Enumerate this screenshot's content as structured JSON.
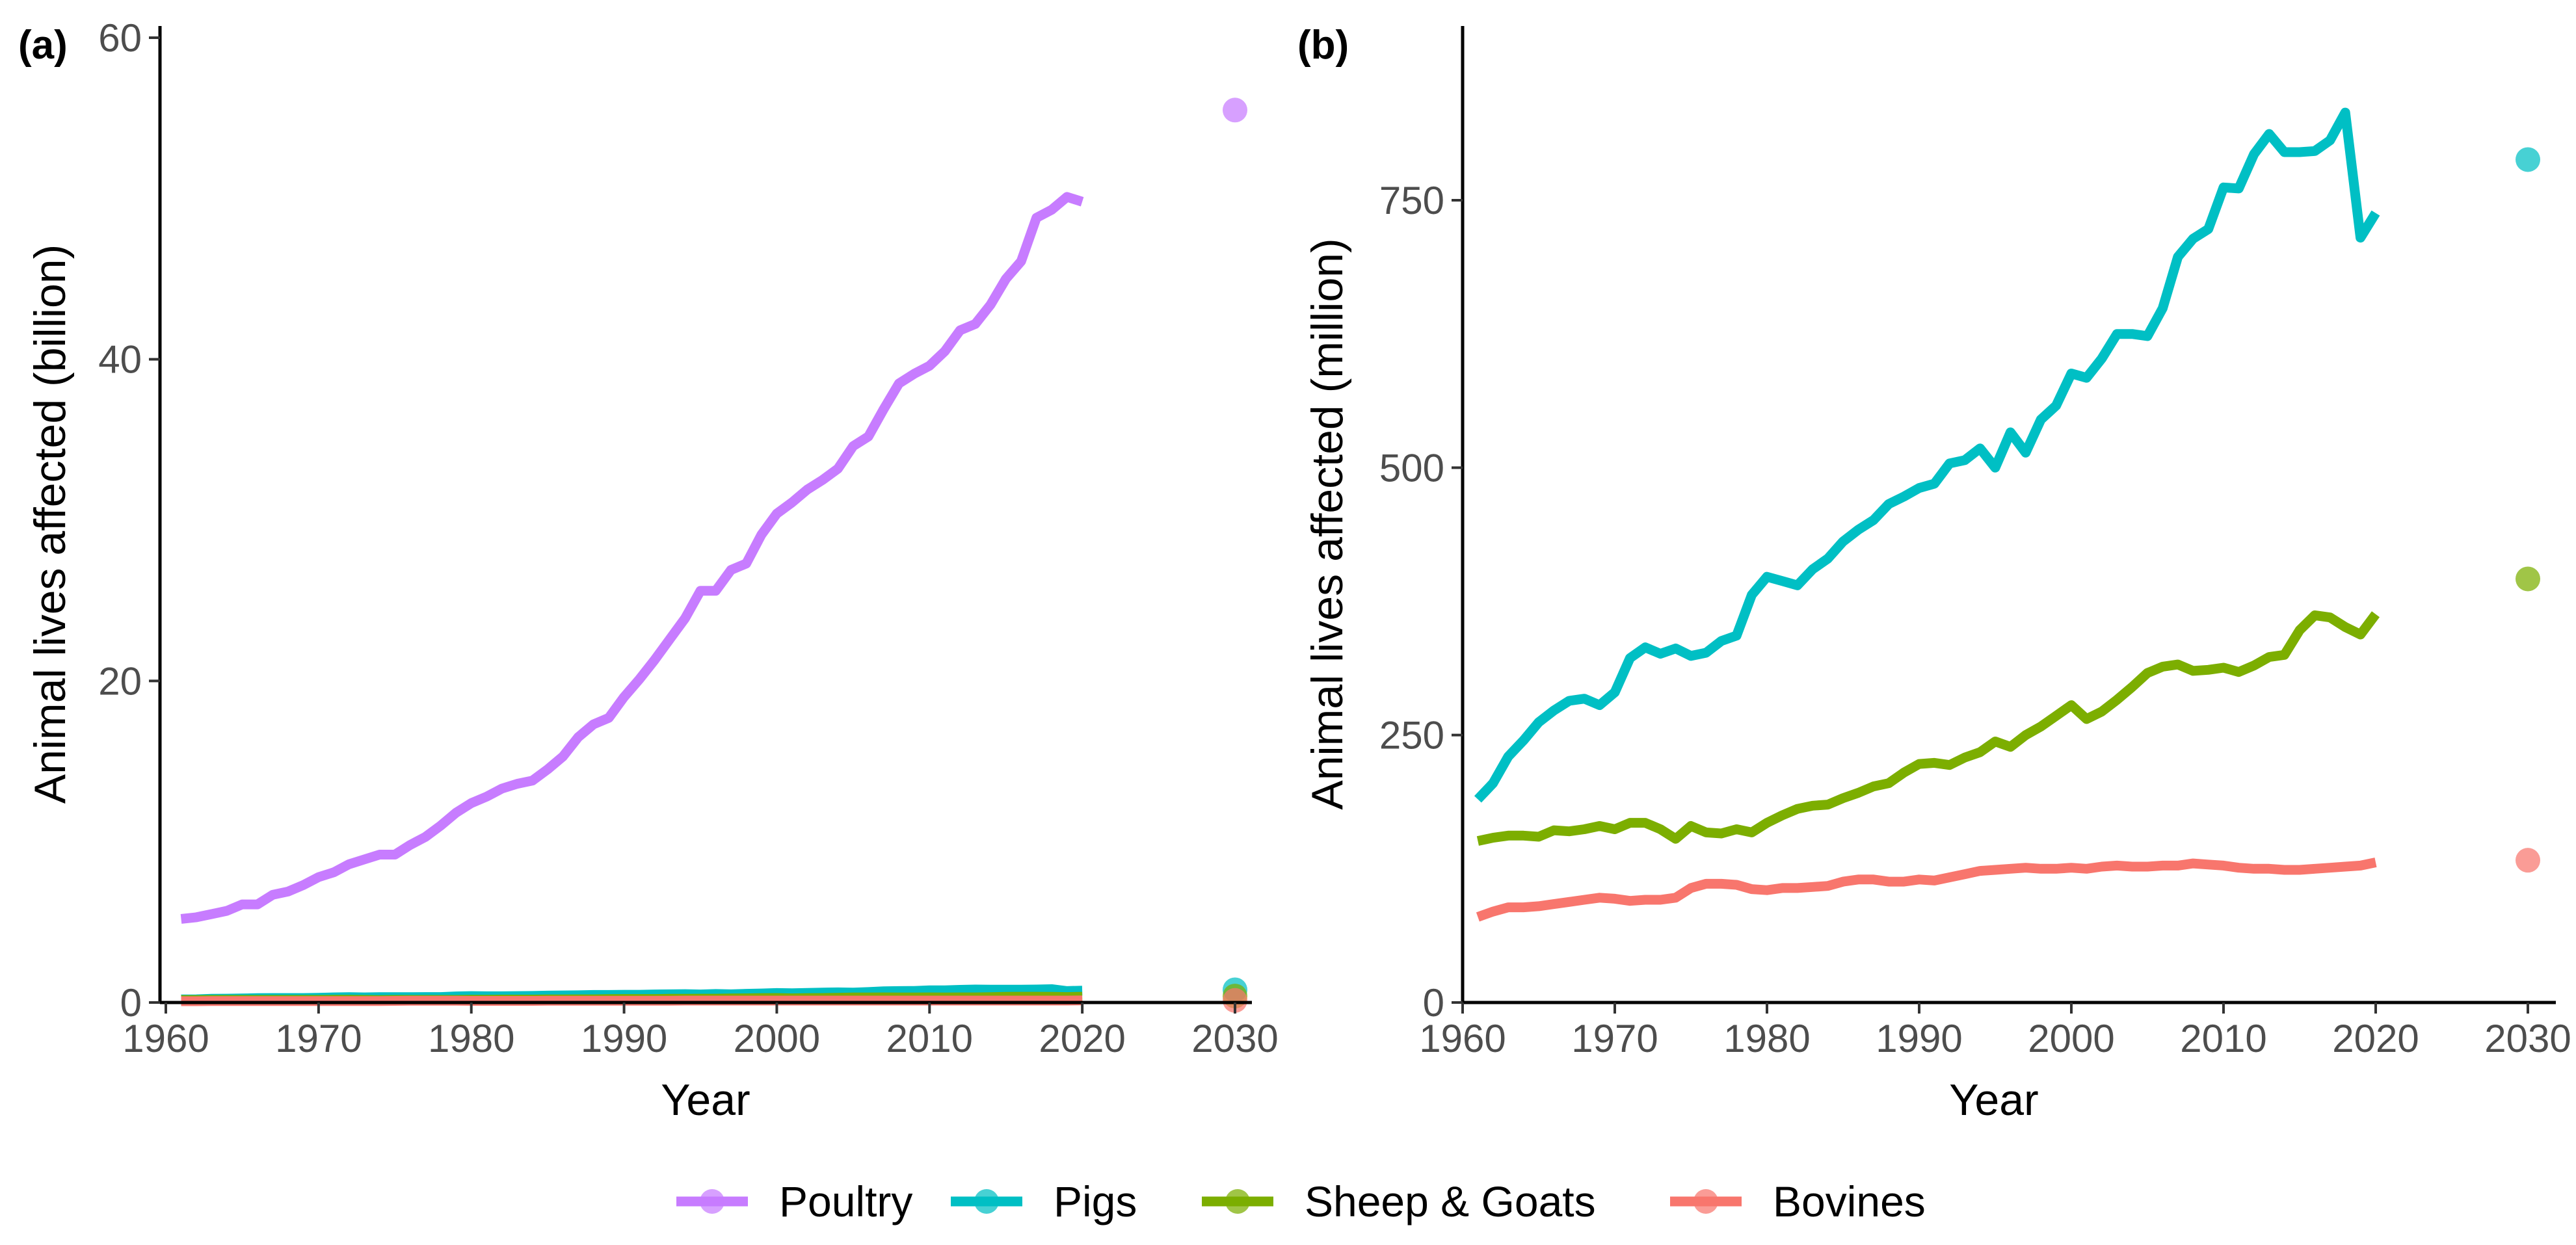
{
  "colors": {
    "Poultry": "#C77CFF",
    "Pigs": "#00BFC4",
    "Sheep & Goats": "#7CAE00",
    "Bovines": "#F8766D"
  },
  "panels": [
    {
      "tag": "(a)",
      "xlabel": "Year",
      "ylabel": "Animal lives affected (billion)",
      "x_ticks": [
        "1960",
        "1970",
        "1980",
        "1990",
        "2000",
        "2010",
        "2020",
        "2030"
      ],
      "y_ticks": [
        "0",
        "20",
        "40",
        "60"
      ]
    },
    {
      "tag": "(b)",
      "xlabel": "Year",
      "ylabel": "Animal lives affected (million)",
      "x_ticks": [
        "1960",
        "1970",
        "1980",
        "1990",
        "2000",
        "2010",
        "2020",
        "2030"
      ],
      "y_ticks": [
        "0",
        "250",
        "500",
        "750"
      ]
    }
  ],
  "legend": {
    "position": "bottom",
    "items": [
      "Poultry",
      "Pigs",
      "Sheep & Goats",
      "Bovines"
    ]
  },
  "chart_data": [
    {
      "type": "line",
      "panel": "(a)",
      "xlabel": "Year",
      "ylabel": "Animal lives affected (billion)",
      "xlim": [
        1960,
        2030
      ],
      "ylim": [
        0,
        60
      ],
      "grid": false,
      "x": [
        1961,
        1962,
        1963,
        1964,
        1965,
        1966,
        1967,
        1968,
        1969,
        1970,
        1971,
        1972,
        1973,
        1974,
        1975,
        1976,
        1977,
        1978,
        1979,
        1980,
        1981,
        1982,
        1983,
        1984,
        1985,
        1986,
        1987,
        1988,
        1989,
        1990,
        1991,
        1992,
        1993,
        1994,
        1995,
        1996,
        1997,
        1998,
        1999,
        2000,
        2001,
        2002,
        2003,
        2004,
        2005,
        2006,
        2007,
        2008,
        2009,
        2010,
        2011,
        2012,
        2013,
        2014,
        2015,
        2016,
        2017,
        2018,
        2019,
        2020
      ],
      "series": [
        {
          "name": "Poultry",
          "values": [
            5.2,
            5.3,
            5.5,
            5.7,
            6.1,
            6.1,
            6.7,
            6.9,
            7.3,
            7.8,
            8.1,
            8.6,
            8.9,
            9.2,
            9.2,
            9.8,
            10.3,
            11.0,
            11.8,
            12.4,
            12.8,
            13.3,
            13.6,
            13.8,
            14.5,
            15.3,
            16.5,
            17.3,
            17.7,
            19.0,
            20.1,
            21.3,
            22.6,
            23.9,
            25.6,
            25.6,
            26.9,
            27.3,
            29.1,
            30.4,
            31.1,
            31.9,
            32.5,
            33.2,
            34.6,
            35.2,
            36.9,
            38.5,
            39.1,
            39.6,
            40.5,
            41.8,
            42.2,
            43.4,
            45.0,
            46.1,
            48.8,
            49.3,
            50.1,
            49.8
          ],
          "projection_2030": 55.5
        },
        {
          "name": "Pigs",
          "values": [
            0.19,
            0.2,
            0.23,
            0.24,
            0.25,
            0.27,
            0.28,
            0.28,
            0.28,
            0.29,
            0.32,
            0.33,
            0.32,
            0.33,
            0.33,
            0.33,
            0.34,
            0.34,
            0.38,
            0.4,
            0.39,
            0.39,
            0.4,
            0.41,
            0.43,
            0.44,
            0.45,
            0.47,
            0.47,
            0.48,
            0.48,
            0.5,
            0.51,
            0.52,
            0.5,
            0.53,
            0.51,
            0.54,
            0.56,
            0.59,
            0.58,
            0.6,
            0.62,
            0.63,
            0.62,
            0.65,
            0.7,
            0.71,
            0.72,
            0.76,
            0.76,
            0.79,
            0.81,
            0.8,
            0.8,
            0.8,
            0.81,
            0.83,
            0.71,
            0.74
          ],
          "projection_2030": 0.79
        },
        {
          "name": "Sheep & Goats",
          "values": [
            0.15,
            0.15,
            0.16,
            0.16,
            0.16,
            0.16,
            0.16,
            0.16,
            0.16,
            0.16,
            0.17,
            0.17,
            0.16,
            0.15,
            0.16,
            0.16,
            0.16,
            0.16,
            0.16,
            0.17,
            0.17,
            0.18,
            0.18,
            0.18,
            0.19,
            0.19,
            0.2,
            0.2,
            0.21,
            0.22,
            0.22,
            0.22,
            0.23,
            0.23,
            0.24,
            0.24,
            0.25,
            0.26,
            0.27,
            0.28,
            0.26,
            0.27,
            0.28,
            0.29,
            0.31,
            0.31,
            0.32,
            0.31,
            0.31,
            0.32,
            0.31,
            0.32,
            0.32,
            0.33,
            0.35,
            0.36,
            0.36,
            0.35,
            0.34,
            0.36
          ],
          "projection_2030": 0.4
        },
        {
          "name": "Bovines",
          "values": [
            0.08,
            0.08,
            0.09,
            0.09,
            0.09,
            0.09,
            0.09,
            0.09,
            0.09,
            0.09,
            0.09,
            0.09,
            0.09,
            0.09,
            0.1,
            0.11,
            0.11,
            0.11,
            0.11,
            0.1,
            0.1,
            0.1,
            0.1,
            0.1,
            0.11,
            0.11,
            0.11,
            0.11,
            0.11,
            0.11,
            0.11,
            0.11,
            0.11,
            0.12,
            0.12,
            0.12,
            0.12,
            0.12,
            0.12,
            0.12,
            0.12,
            0.12,
            0.12,
            0.12,
            0.12,
            0.12,
            0.12,
            0.12,
            0.12,
            0.12,
            0.12,
            0.12,
            0.12,
            0.12,
            0.12,
            0.12,
            0.12,
            0.12,
            0.12,
            0.13
          ],
          "projection_2030": 0.13
        }
      ]
    },
    {
      "type": "line",
      "panel": "(b)",
      "xlabel": "Year",
      "ylabel": "Animal lives affected (million)",
      "xlim": [
        1960,
        2030
      ],
      "ylim": [
        0,
        900
      ],
      "grid": false,
      "x": [
        1961,
        1962,
        1963,
        1964,
        1965,
        1966,
        1967,
        1968,
        1969,
        1970,
        1971,
        1972,
        1973,
        1974,
        1975,
        1976,
        1977,
        1978,
        1979,
        1980,
        1981,
        1982,
        1983,
        1984,
        1985,
        1986,
        1987,
        1988,
        1989,
        1990,
        1991,
        1992,
        1993,
        1994,
        1995,
        1996,
        1997,
        1998,
        1999,
        2000,
        2001,
        2002,
        2003,
        2004,
        2005,
        2006,
        2007,
        2008,
        2009,
        2010,
        2011,
        2012,
        2013,
        2014,
        2015,
        2016,
        2017,
        2018,
        2019,
        2020
      ],
      "series": [
        {
          "name": "Pigs",
          "values": [
            190,
            205,
            230,
            245,
            262,
            273,
            282,
            284,
            278,
            290,
            322,
            332,
            326,
            331,
            324,
            327,
            338,
            343,
            381,
            398,
            394,
            390,
            405,
            415,
            431,
            442,
            451,
            466,
            473,
            481,
            485,
            504,
            507,
            518,
            500,
            533,
            514,
            545,
            558,
            588,
            584,
            602,
            625,
            625,
            623,
            649,
            697,
            714,
            723,
            762,
            761,
            793,
            812,
            795,
            795,
            796,
            806,
            832,
            715,
            738
          ],
          "projection_2030": 788
        },
        {
          "name": "Sheep & Goats",
          "values": [
            151,
            154,
            156,
            156,
            155,
            161,
            160,
            162,
            165,
            162,
            168,
            168,
            162,
            153,
            165,
            159,
            158,
            162,
            159,
            168,
            175,
            181,
            184,
            185,
            191,
            196,
            202,
            205,
            215,
            223,
            224,
            222,
            229,
            234,
            244,
            239,
            250,
            258,
            268,
            278,
            265,
            272,
            283,
            295,
            308,
            314,
            316,
            310,
            311,
            313,
            309,
            315,
            323,
            325,
            348,
            362,
            360,
            351,
            344,
            363
          ],
          "projection_2030": 396
        },
        {
          "name": "Bovines",
          "values": [
            80,
            85,
            89,
            89,
            90,
            92,
            94,
            96,
            98,
            97,
            95,
            96,
            96,
            98,
            107,
            111,
            111,
            110,
            106,
            105,
            107,
            107,
            108,
            109,
            113,
            115,
            115,
            113,
            113,
            115,
            114,
            117,
            120,
            123,
            124,
            125,
            126,
            125,
            125,
            126,
            125,
            127,
            128,
            127,
            127,
            128,
            128,
            130,
            129,
            128,
            126,
            125,
            125,
            124,
            124,
            125,
            126,
            127,
            128,
            131
          ],
          "projection_2030": 133
        }
      ]
    }
  ]
}
